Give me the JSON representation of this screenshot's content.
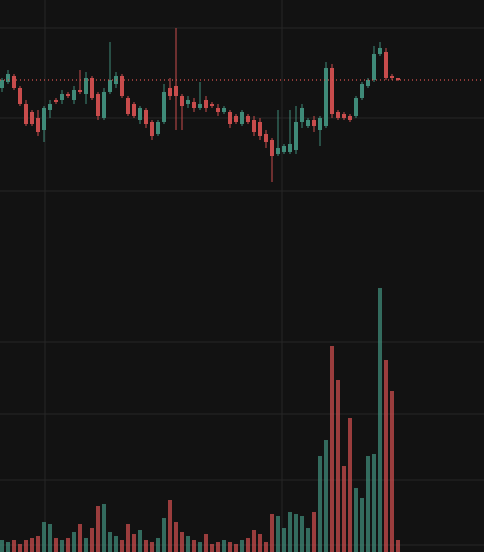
{
  "chart_data": {
    "type": "candlestick",
    "categories": [
      null,
      null,
      null,
      null,
      null,
      null,
      null,
      null,
      null,
      null,
      null,
      null,
      null,
      null,
      null,
      null,
      null,
      null,
      null,
      null,
      null,
      null,
      null,
      null,
      null,
      null,
      null,
      null,
      null,
      null,
      null,
      null,
      null,
      null,
      null,
      null,
      null,
      null,
      null,
      null,
      null,
      null,
      null,
      null,
      null,
      null,
      null,
      null,
      null,
      null,
      null,
      null,
      null,
      null,
      null,
      null,
      null,
      null,
      null,
      null,
      null,
      null,
      null,
      null,
      null,
      null,
      null
    ],
    "open": [
      212,
      218,
      224,
      212,
      196,
      188,
      182,
      170,
      190,
      200,
      200,
      206,
      200,
      210,
      206,
      222,
      206,
      182,
      208,
      216,
      224,
      202,
      196,
      180,
      190,
      178,
      166,
      178,
      212,
      214,
      204,
      196,
      198,
      192,
      200,
      196,
      192,
      188,
      188,
      184,
      176,
      184,
      180,
      178,
      166,
      160,
      146,
      148,
      148,
      150,
      178,
      174,
      180,
      170,
      174,
      232,
      188,
      186,
      184,
      184,
      202,
      214,
      220,
      246,
      248,
      224,
      222
    ],
    "high": [
      222,
      230,
      226,
      214,
      200,
      190,
      190,
      194,
      200,
      202,
      210,
      208,
      214,
      230,
      228,
      224,
      208,
      212,
      258,
      228,
      226,
      204,
      198,
      194,
      192,
      180,
      180,
      216,
      222,
      272,
      206,
      204,
      202,
      218,
      204,
      198,
      196,
      194,
      190,
      186,
      190,
      186,
      184,
      182,
      170,
      162,
      190,
      156,
      190,
      194,
      196,
      182,
      184,
      184,
      238,
      236,
      190,
      188,
      186,
      204,
      218,
      222,
      254,
      258,
      252,
      226,
      222
    ],
    "low": [
      208,
      216,
      210,
      194,
      174,
      174,
      164,
      158,
      182,
      196,
      196,
      202,
      196,
      206,
      196,
      200,
      180,
      180,
      206,
      212,
      202,
      184,
      182,
      176,
      172,
      160,
      164,
      176,
      200,
      170,
      170,
      192,
      188,
      190,
      188,
      192,
      184,
      186,
      172,
      176,
      174,
      176,
      164,
      160,
      152,
      118,
      144,
      146,
      146,
      146,
      172,
      172,
      168,
      154,
      172,
      182,
      180,
      180,
      178,
      182,
      200,
      212,
      218,
      244,
      220,
      220,
      219
    ],
    "close": [
      220,
      226,
      212,
      196,
      176,
      176,
      168,
      192,
      196,
      198,
      206,
      204,
      210,
      208,
      222,
      202,
      184,
      208,
      220,
      224,
      204,
      186,
      184,
      192,
      176,
      164,
      178,
      208,
      204,
      204,
      194,
      200,
      192,
      196,
      192,
      194,
      188,
      192,
      176,
      178,
      188,
      178,
      168,
      164,
      158,
      144,
      152,
      154,
      156,
      178,
      192,
      180,
      174,
      182,
      232,
      186,
      182,
      182,
      180,
      202,
      216,
      220,
      246,
      252,
      222,
      222,
      220
    ],
    "volume": [
      12,
      10,
      12,
      8,
      12,
      14,
      16,
      30,
      28,
      14,
      12,
      14,
      20,
      28,
      14,
      24,
      46,
      48,
      20,
      16,
      12,
      28,
      18,
      22,
      12,
      10,
      14,
      34,
      52,
      30,
      20,
      16,
      12,
      10,
      18,
      8,
      10,
      12,
      10,
      8,
      12,
      14,
      22,
      18,
      10,
      38,
      36,
      24,
      40,
      38,
      36,
      24,
      40,
      96,
      112,
      206,
      172,
      86,
      134,
      64,
      54,
      96,
      98,
      264,
      192,
      161,
      12
    ],
    "up_color": "#3f8a78",
    "down_color": "#c84c4c",
    "last_price": 220,
    "last_price_color": "#d9534f",
    "ylim": [
      40,
      300
    ],
    "yticks": [
      272,
      182,
      109
    ],
    "volume_ylim": [
      0,
      292
    ],
    "volume_ticks": [
      210,
      138,
      72,
      7
    ],
    "grid": true
  }
}
